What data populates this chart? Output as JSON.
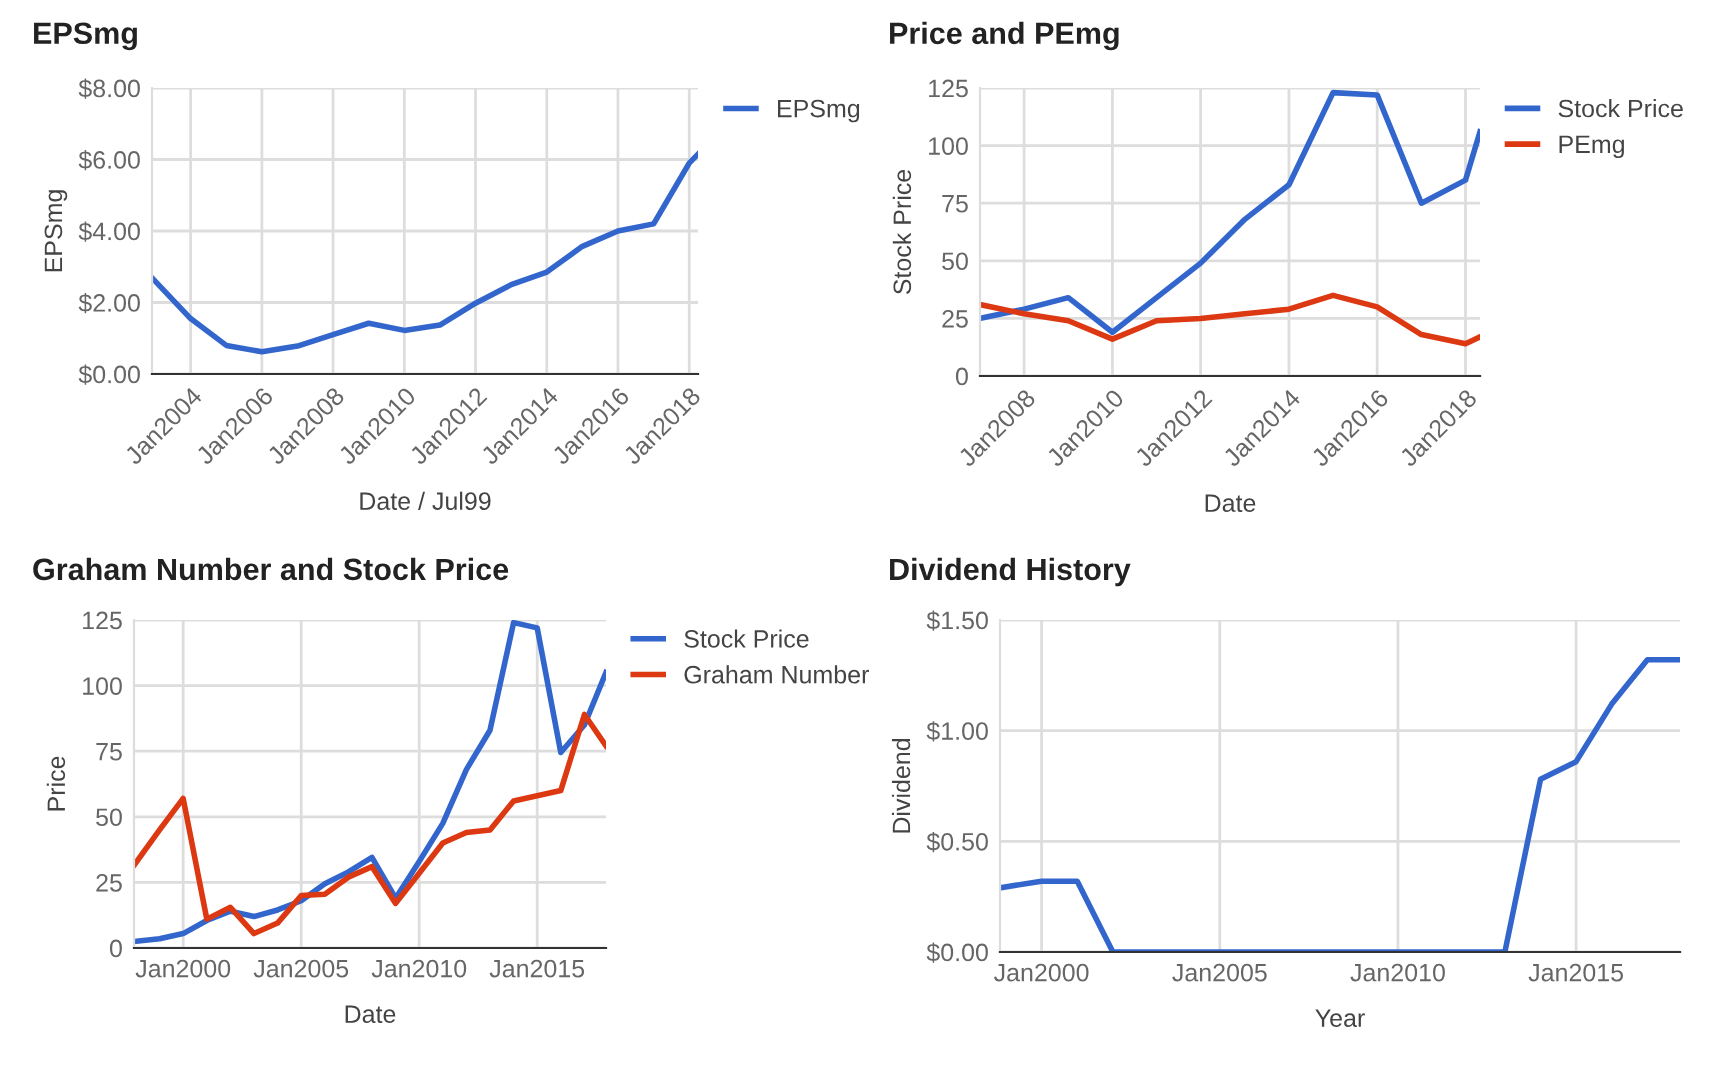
{
  "chart_data": [
    {
      "type": "line",
      "title": "EPSmg",
      "xlabel": "Date / Jul99",
      "ylabel": "EPSmg",
      "legend": "right",
      "grid": true,
      "xlim": [
        "2002-12",
        "2018-04"
      ],
      "ylim": [
        0,
        8
      ],
      "yticks": [
        {
          "value": 0,
          "label": "$0.00"
        },
        {
          "value": 2,
          "label": "$2.00"
        },
        {
          "value": 4,
          "label": "$4.00"
        },
        {
          "value": 6,
          "label": "$6.00"
        },
        {
          "value": 8,
          "label": "$8.00"
        }
      ],
      "xticks": [
        {
          "value": "2004-01",
          "label": "Jan2004"
        },
        {
          "value": "2006-01",
          "label": "Jan2006"
        },
        {
          "value": "2008-01",
          "label": "Jan2008"
        },
        {
          "value": "2010-01",
          "label": "Jan2010"
        },
        {
          "value": "2012-01",
          "label": "Jan2012"
        },
        {
          "value": "2014-01",
          "label": "Jan2014"
        },
        {
          "value": "2016-01",
          "label": "Jan2016"
        },
        {
          "value": "2018-01",
          "label": "Jan2018"
        }
      ],
      "x": [
        "2002-12",
        "2004-01",
        "2005-01",
        "2006-01",
        "2007-01",
        "2008-01",
        "2009-01",
        "2010-01",
        "2011-01",
        "2012-01",
        "2013-01",
        "2014-01",
        "2015-01",
        "2016-01",
        "2017-01",
        "2018-01",
        "2018-04"
      ],
      "series": [
        {
          "name": "EPSmg",
          "color": "#3366cc",
          "values": [
            2.69,
            1.55,
            0.8,
            0.62,
            0.78,
            1.1,
            1.42,
            1.22,
            1.37,
            1.98,
            2.5,
            2.85,
            3.57,
            4.0,
            4.2,
            5.9,
            6.15
          ]
        }
      ]
    },
    {
      "type": "line",
      "title": "Price and PEmg",
      "xlabel": "Date",
      "ylabel": "Stock Price",
      "legend": "right",
      "grid": true,
      "xlim": [
        "2007-01",
        "2018-05"
      ],
      "ylim": [
        0,
        125
      ],
      "yticks": [
        0,
        25,
        50,
        75,
        100,
        125
      ],
      "xticks": [
        {
          "value": "2008-01",
          "label": "Jan2008"
        },
        {
          "value": "2010-01",
          "label": "Jan2010"
        },
        {
          "value": "2012-01",
          "label": "Jan2012"
        },
        {
          "value": "2014-01",
          "label": "Jan2014"
        },
        {
          "value": "2016-01",
          "label": "Jan2016"
        },
        {
          "value": "2018-01",
          "label": "Jan2018"
        }
      ],
      "x": [
        "2007-01",
        "2008-01",
        "2009-01",
        "2010-01",
        "2011-01",
        "2012-01",
        "2013-01",
        "2014-01",
        "2015-01",
        "2016-01",
        "2017-01",
        "2018-01",
        "2018-05"
      ],
      "series": [
        {
          "name": "Stock Price",
          "color": "#3366cc",
          "values": [
            25,
            29,
            34,
            19,
            34,
            49,
            68,
            83,
            123,
            122,
            75,
            85,
            106
          ]
        },
        {
          "name": "PEmg",
          "color": "#dc3912",
          "values": [
            31,
            27,
            24,
            16,
            24,
            25,
            27,
            29,
            35,
            30,
            18,
            14,
            17
          ]
        }
      ]
    },
    {
      "type": "line",
      "title": "Graham Number and Stock Price",
      "xlabel": "Date",
      "ylabel": "Price",
      "legend": "right",
      "grid": true,
      "xlim": [
        "1997-12",
        "2017-12"
      ],
      "ylim": [
        0,
        125
      ],
      "yticks": [
        0,
        25,
        50,
        75,
        100,
        125
      ],
      "xticks": [
        {
          "value": "2000-01",
          "label": "Jan2000"
        },
        {
          "value": "2005-01",
          "label": "Jan2005"
        },
        {
          "value": "2010-01",
          "label": "Jan2010"
        },
        {
          "value": "2015-01",
          "label": "Jan2015"
        }
      ],
      "x": [
        "1997-12",
        "1999-01",
        "2000-01",
        "2001-01",
        "2002-01",
        "2003-01",
        "2004-01",
        "2005-01",
        "2006-01",
        "2007-01",
        "2008-01",
        "2009-01",
        "2010-01",
        "2011-01",
        "2012-01",
        "2013-01",
        "2014-01",
        "2015-01",
        "2016-01",
        "2017-01",
        "2017-12"
      ],
      "series": [
        {
          "name": "Stock Price",
          "color": "#3366cc",
          "values": [
            2.5,
            3.5,
            5.5,
            10.5,
            14,
            12,
            14.5,
            18,
            24.5,
            29,
            34.5,
            19,
            33,
            47.5,
            68,
            83,
            124,
            122,
            74.5,
            85,
            105
          ]
        },
        {
          "name": "Graham Number",
          "color": "#dc3912",
          "values": [
            31.5,
            45,
            57,
            11,
            15.5,
            5.5,
            9.5,
            20,
            20.5,
            27,
            31,
            17,
            28.5,
            40,
            44,
            45,
            56,
            58,
            60,
            89,
            77
          ]
        }
      ]
    },
    {
      "type": "line",
      "title": "Dividend History",
      "xlabel": "Year",
      "ylabel": "Dividend",
      "grid": true,
      "xlim": [
        "1998-11",
        "2017-12"
      ],
      "ylim": [
        0,
        1.5
      ],
      "yticks": [
        {
          "value": 0,
          "label": "$0.00"
        },
        {
          "value": 0.5,
          "label": "$0.50"
        },
        {
          "value": 1,
          "label": "$1.00"
        },
        {
          "value": 1.5,
          "label": "$1.50"
        }
      ],
      "xticks": [
        {
          "value": "2000-01",
          "label": "Jan2000"
        },
        {
          "value": "2005-01",
          "label": "Jan2005"
        },
        {
          "value": "2010-01",
          "label": "Jan2010"
        },
        {
          "value": "2015-01",
          "label": "Jan2015"
        }
      ],
      "x": [
        "1998-11",
        "2000-01",
        "2001-01",
        "2002-01",
        "2013-01",
        "2014-01",
        "2015-01",
        "2016-01",
        "2017-01",
        "2017-12"
      ],
      "series": [
        {
          "color": "#3366cc",
          "values": [
            0.29,
            0.32,
            0.32,
            0,
            0,
            0.78,
            0.86,
            1.12,
            1.32,
            1.32
          ]
        }
      ]
    }
  ]
}
